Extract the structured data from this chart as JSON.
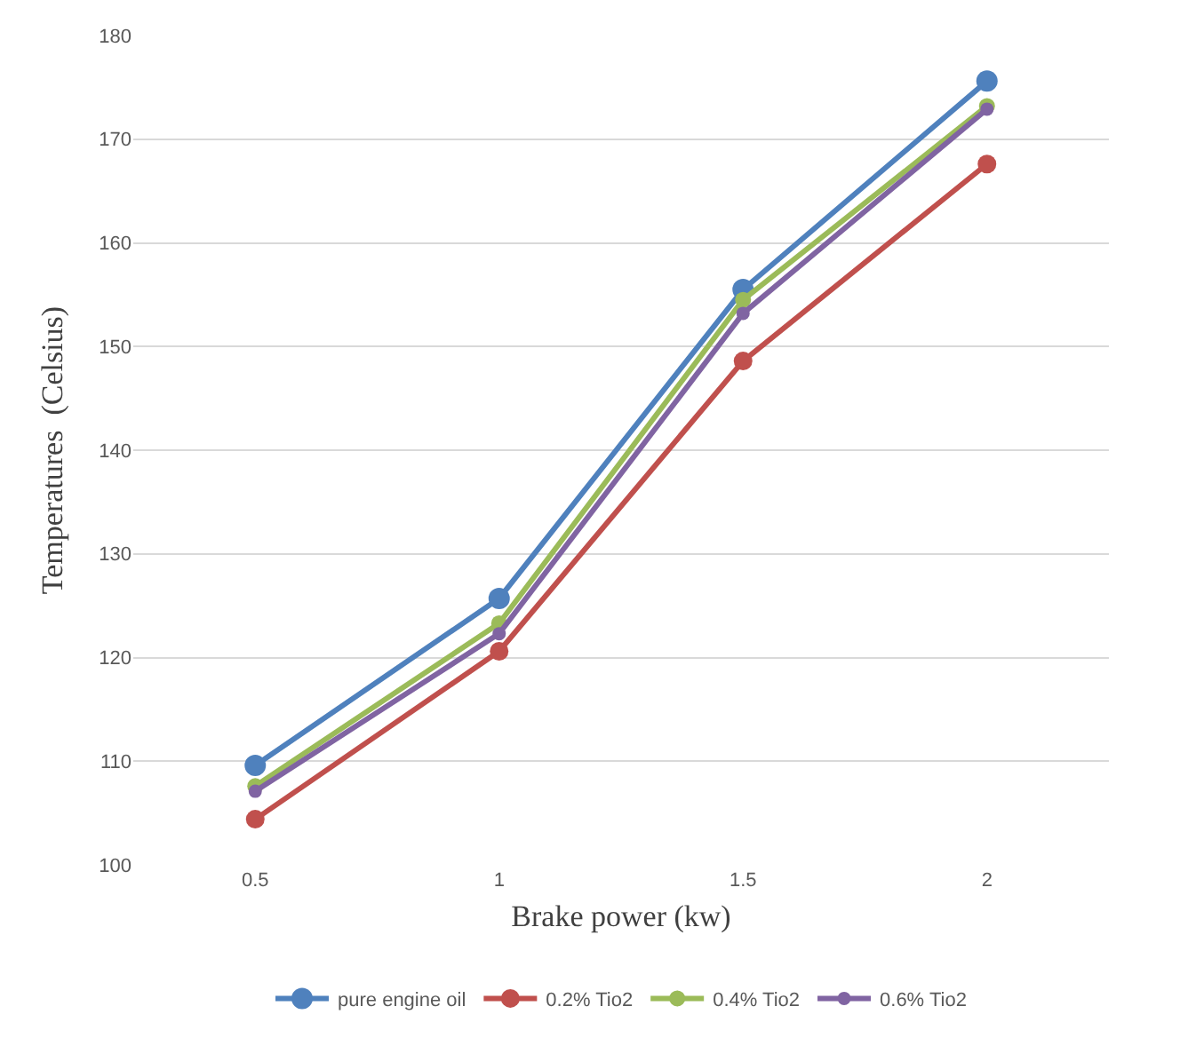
{
  "chart_data": {
    "type": "line",
    "xlabel": "Brake power (kw)",
    "ylabel": "Temperatures  (Celsius)",
    "categories": [
      "0.5",
      "1",
      "1.5",
      "2"
    ],
    "series": [
      {
        "name": "pure engine oil",
        "color": "#4f81bd",
        "values": [
          109.6,
          125.7,
          155.5,
          175.6
        ]
      },
      {
        "name": "0.2% Tio2",
        "color": "#c0504d",
        "values": [
          104.4,
          120.6,
          148.6,
          167.6
        ]
      },
      {
        "name": "0.4% Tio2",
        "color": "#9bbb59",
        "values": [
          107.6,
          123.3,
          154.5,
          173.2
        ]
      },
      {
        "name": "0.6% Tio2",
        "color": "#8064a2",
        "values": [
          107.1,
          122.3,
          153.2,
          172.9
        ]
      }
    ],
    "ylim": [
      100,
      180
    ],
    "yticks": [
      100,
      110,
      120,
      130,
      140,
      150,
      160,
      170,
      180
    ],
    "grid": "y",
    "legend": "bottom",
    "marker": "circle",
    "line_style": "solid"
  }
}
